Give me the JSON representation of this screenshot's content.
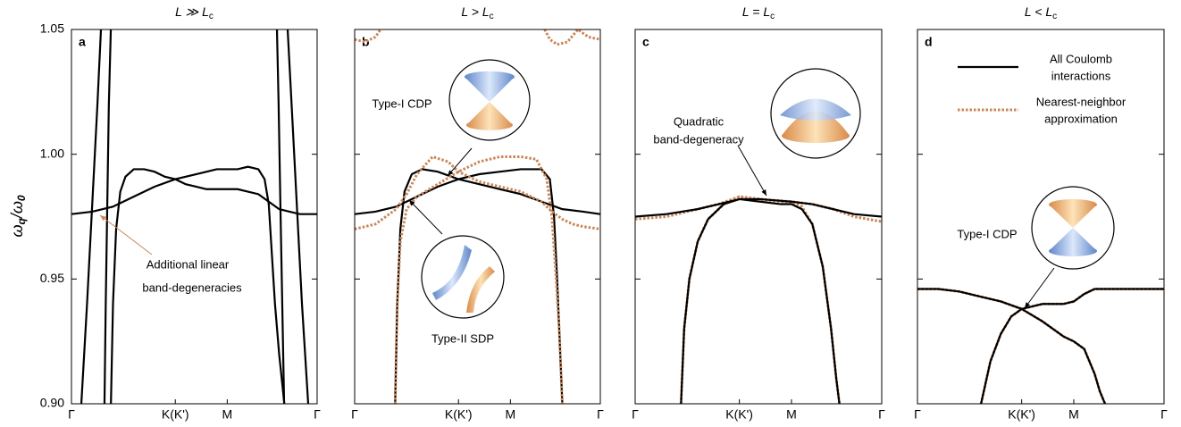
{
  "chart_data": [
    {
      "type": "line",
      "title": "L ≫ L",
      "title_subscript": "c",
      "letter": "a",
      "ylabel": [
        {
          "text": "ω"
        },
        {
          "text": "q",
          "sub": true
        },
        {
          "text": "/ω"
        },
        {
          "text": "0",
          "sub": true
        }
      ],
      "xlim": [
        0,
        2.366
      ],
      "xticks": [
        {
          "value": 0,
          "label": "Γ"
        },
        {
          "value": 1,
          "label": "K(K')"
        },
        {
          "value": 1.5,
          "label": "M"
        },
        {
          "value": 2.366,
          "label": "Γ"
        }
      ],
      "ylim": [
        0.9,
        1.05
      ],
      "yticks": [
        {
          "value": 0.9,
          "label": "0.90"
        },
        0.95,
        {
          "value": 1,
          "label": "1.00"
        },
        1.05
      ],
      "show_ytick_labels": true,
      "annotations": [
        "Additional linear",
        "band-degeneracies"
      ],
      "series": [
        {
          "style": "solid",
          "color": "#000000",
          "x": [
            0.095,
            0.15,
            0.2,
            0.25,
            0.284
          ],
          "values": [
            0.9,
            0.94,
            0.98,
            1.02,
            1.05
          ]
        },
        {
          "style": "solid",
          "color": "#000000",
          "x": [
            0.318,
            0.33,
            0.345,
            0.36,
            0.379
          ],
          "values": [
            0.9,
            0.94,
            0.98,
            1.02,
            1.05
          ]
        },
        {
          "style": "solid",
          "color": "#000000",
          "x": [
            0.38,
            0.4,
            0.43,
            0.47,
            0.52,
            0.6,
            0.7,
            0.8,
            0.9,
            1.0,
            1.1,
            1.2,
            1.3,
            1.4,
            1.5,
            1.6,
            1.7,
            1.8,
            1.9,
            2.0,
            2.1,
            2.2,
            2.366
          ],
          "values": [
            0.9,
            0.94,
            0.97,
            0.985,
            0.991,
            0.994,
            0.994,
            0.993,
            0.991,
            0.99,
            0.988,
            0.987,
            0.986,
            0.986,
            0.986,
            0.986,
            0.985,
            0.984,
            0.981,
            0.978,
            0.977,
            0.976,
            0.976
          ]
        },
        {
          "style": "solid",
          "color": "#000000",
          "x": [
            0,
            0.2,
            0.4,
            0.6,
            0.8,
            1.0,
            1.2,
            1.4,
            1.5,
            1.6,
            1.7,
            1.8,
            1.86,
            1.9,
            1.93,
            1.96,
            2.0,
            2.05
          ],
          "values": [
            0.976,
            0.977,
            0.979,
            0.983,
            0.987,
            0.99,
            0.992,
            0.994,
            0.994,
            0.994,
            0.995,
            0.994,
            0.99,
            0.98,
            0.96,
            0.94,
            0.92,
            0.9
          ]
        },
        {
          "style": "solid",
          "color": "#000000",
          "x": [
            1.979,
            1.995,
            2.012,
            2.03,
            2.048
          ],
          "values": [
            1.05,
            1.02,
            0.98,
            0.94,
            0.9
          ]
        },
        {
          "style": "solid",
          "color": "#000000",
          "x": [
            2.082,
            2.12,
            2.17,
            2.22,
            2.28
          ],
          "values": [
            1.05,
            1.02,
            0.98,
            0.94,
            0.9
          ]
        }
      ]
    },
    {
      "type": "line",
      "title": "L > L",
      "title_subscript": "c",
      "letter": "b",
      "xlim": [
        0,
        2.366
      ],
      "xticks": [
        {
          "value": 0,
          "label": "Γ"
        },
        {
          "value": 1,
          "label": "K(K')"
        },
        {
          "value": 1.5,
          "label": "M"
        },
        {
          "value": 2.366,
          "label": "Γ"
        }
      ],
      "ylim": [
        0.9,
        1.05
      ],
      "yticks": [
        0.9,
        0.95,
        1,
        1.05
      ],
      "show_ytick_labels": false,
      "annotations": [
        "Type-I CDP",
        "Type-II SDP"
      ],
      "series": [
        {
          "style": "solid",
          "color": "#000000",
          "x": [
            0.39,
            0.41,
            0.44,
            0.48,
            0.55,
            0.65,
            0.8,
            1.0,
            1.2,
            1.4,
            1.5,
            1.6,
            1.8,
            2.0,
            2.2,
            2.366
          ],
          "values": [
            0.9,
            0.94,
            0.97,
            0.985,
            0.992,
            0.994,
            0.993,
            0.99,
            0.988,
            0.986,
            0.985,
            0.984,
            0.981,
            0.978,
            0.977,
            0.976
          ]
        },
        {
          "style": "solid",
          "color": "#000000",
          "x": [
            0,
            0.2,
            0.4,
            0.6,
            0.8,
            1.0,
            1.2,
            1.4,
            1.6,
            1.8,
            1.88,
            1.92,
            1.95,
            1.97,
            2.0
          ],
          "values": [
            0.976,
            0.977,
            0.979,
            0.983,
            0.987,
            0.99,
            0.992,
            0.993,
            0.994,
            0.994,
            0.99,
            0.975,
            0.95,
            0.93,
            0.9
          ]
        },
        {
          "style": "dotted",
          "color": "#c8865a",
          "x": [
            0,
            0.1,
            0.2,
            0.25
          ],
          "values": [
            1.046,
            1.045,
            1.047,
            1.05
          ]
        },
        {
          "style": "dotted",
          "color": "#c8865a",
          "x": [
            1.83,
            1.88,
            1.95,
            2.05,
            2.15,
            2.25,
            2.366
          ],
          "values": [
            1.05,
            1.046,
            1.044,
            1.045,
            1.05,
            1.047,
            1.046
          ]
        },
        {
          "style": "dotted",
          "color": "#c8865a",
          "x": [
            0,
            0.2,
            0.4,
            0.5,
            0.6,
            0.75,
            0.9,
            1.0,
            1.2,
            1.4,
            1.6,
            1.8,
            1.9,
            2.0,
            2.1,
            2.2,
            2.366
          ],
          "values": [
            0.97,
            0.972,
            0.978,
            0.984,
            0.992,
            0.999,
            0.997,
            0.993,
            0.989,
            0.987,
            0.985,
            0.981,
            0.977,
            0.974,
            0.972,
            0.971,
            0.97
          ]
        },
        {
          "style": "dotted",
          "color": "#c8865a",
          "x": [
            0.39,
            0.41,
            0.44,
            0.5,
            0.6,
            0.8,
            1.0,
            1.2,
            1.4,
            1.6,
            1.75,
            1.85,
            1.9,
            1.94,
            1.97,
            2.0
          ],
          "values": [
            0.9,
            0.94,
            0.965,
            0.978,
            0.983,
            0.988,
            0.993,
            0.997,
            0.999,
            0.999,
            0.998,
            0.99,
            0.975,
            0.95,
            0.93,
            0.9
          ]
        }
      ]
    },
    {
      "type": "line",
      "title": "L = L",
      "title_subscript": "c",
      "letter": "c",
      "xlim": [
        0,
        2.366
      ],
      "xticks": [
        {
          "value": 0,
          "label": "Γ"
        },
        {
          "value": 1,
          "label": "K(K')"
        },
        {
          "value": 1.5,
          "label": "M"
        },
        {
          "value": 2.366,
          "label": "Γ"
        }
      ],
      "ylim": [
        0.9,
        1.05
      ],
      "yticks": [
        0.9,
        0.95,
        1,
        1.05
      ],
      "show_ytick_labels": false,
      "annotations": [
        "Quadratic",
        "band-degeneracy"
      ],
      "series": [
        {
          "style": "dotted",
          "color": "#c8865a",
          "x": [
            0,
            0.3,
            0.6,
            0.8,
            1.0,
            1.2,
            1.5,
            1.7,
            1.9,
            2.1,
            2.366
          ],
          "values": [
            0.974,
            0.975,
            0.978,
            0.98,
            0.983,
            0.982,
            0.981,
            0.98,
            0.978,
            0.975,
            0.973
          ]
        },
        {
          "style": "dotted",
          "color": "#c8865a",
          "x": [
            0.44,
            0.47,
            0.52,
            0.6,
            0.7,
            0.85,
            1.0,
            1.2,
            1.4,
            1.5,
            1.6,
            1.7,
            1.8,
            1.88,
            1.93,
            1.96
          ],
          "values": [
            0.9,
            0.93,
            0.95,
            0.965,
            0.974,
            0.98,
            0.983,
            0.982,
            0.981,
            0.981,
            0.979,
            0.972,
            0.955,
            0.93,
            0.91,
            0.9
          ]
        },
        {
          "style": "solid",
          "color": "#000000",
          "x": [
            0,
            0.3,
            0.6,
            0.8,
            1.0,
            1.2,
            1.5,
            1.7,
            1.9,
            2.1,
            2.366
          ],
          "values": [
            0.975,
            0.976,
            0.978,
            0.98,
            0.982,
            0.982,
            0.981,
            0.98,
            0.978,
            0.976,
            0.975
          ]
        },
        {
          "style": "solid",
          "color": "#000000",
          "x": [
            0.44,
            0.47,
            0.52,
            0.6,
            0.7,
            0.85,
            1.0,
            1.2,
            1.4,
            1.5,
            1.6,
            1.7,
            1.8,
            1.88,
            1.93,
            1.96
          ],
          "values": [
            0.9,
            0.93,
            0.95,
            0.965,
            0.974,
            0.98,
            0.982,
            0.981,
            0.98,
            0.98,
            0.978,
            0.972,
            0.955,
            0.93,
            0.91,
            0.9
          ]
        }
      ]
    },
    {
      "type": "line",
      "title": "L < L",
      "title_subscript": "c",
      "letter": "d",
      "xlim": [
        0,
        2.366
      ],
      "xticks": [
        {
          "value": 0,
          "label": "Γ"
        },
        {
          "value": 1,
          "label": "K(K')"
        },
        {
          "value": 1.5,
          "label": "M"
        },
        {
          "value": 2.366,
          "label": "Γ"
        }
      ],
      "ylim": [
        0.9,
        1.05
      ],
      "yticks": [
        0.9,
        0.95,
        1,
        1.05
      ],
      "show_ytick_labels": false,
      "annotations": [
        "Type-I CDP"
      ],
      "legend": [
        {
          "lines": [
            "All Coulomb",
            "interactions"
          ],
          "style": "solid",
          "color": "#000000"
        },
        {
          "lines": [
            "Nearest-neighbor",
            "approximation"
          ],
          "style": "dotted",
          "color": "#c8865a"
        }
      ],
      "series": [
        {
          "style": "dotted",
          "color": "#c8865a",
          "x": [
            0,
            0.2,
            0.4,
            0.6,
            0.8,
            1.0,
            1.2,
            1.4,
            1.5,
            1.6,
            1.7,
            1.75,
            1.8
          ],
          "values": [
            0.946,
            0.946,
            0.945,
            0.943,
            0.941,
            0.938,
            0.933,
            0.927,
            0.925,
            0.922,
            0.912,
            0.905,
            0.9
          ]
        },
        {
          "style": "dotted",
          "color": "#c8865a",
          "x": [
            0.61,
            0.7,
            0.8,
            0.9,
            1.0,
            1.2,
            1.4,
            1.5,
            1.6,
            1.7,
            1.8,
            2.0,
            2.366
          ],
          "values": [
            0.9,
            0.917,
            0.928,
            0.935,
            0.938,
            0.94,
            0.94,
            0.941,
            0.944,
            0.946,
            0.946,
            0.946,
            0.946
          ]
        },
        {
          "style": "solid",
          "color": "#000000",
          "x": [
            0,
            0.2,
            0.4,
            0.6,
            0.8,
            1.0,
            1.2,
            1.4,
            1.5,
            1.6,
            1.7,
            1.75,
            1.8
          ],
          "values": [
            0.946,
            0.946,
            0.945,
            0.943,
            0.941,
            0.938,
            0.933,
            0.927,
            0.925,
            0.922,
            0.912,
            0.905,
            0.9
          ]
        },
        {
          "style": "solid",
          "color": "#000000",
          "x": [
            0.61,
            0.7,
            0.8,
            0.9,
            1.0,
            1.2,
            1.4,
            1.5,
            1.6,
            1.7,
            1.8,
            2.0,
            2.366
          ],
          "values": [
            0.9,
            0.917,
            0.928,
            0.935,
            0.938,
            0.94,
            0.94,
            0.941,
            0.944,
            0.946,
            0.946,
            0.946,
            0.946
          ]
        }
      ]
    }
  ]
}
